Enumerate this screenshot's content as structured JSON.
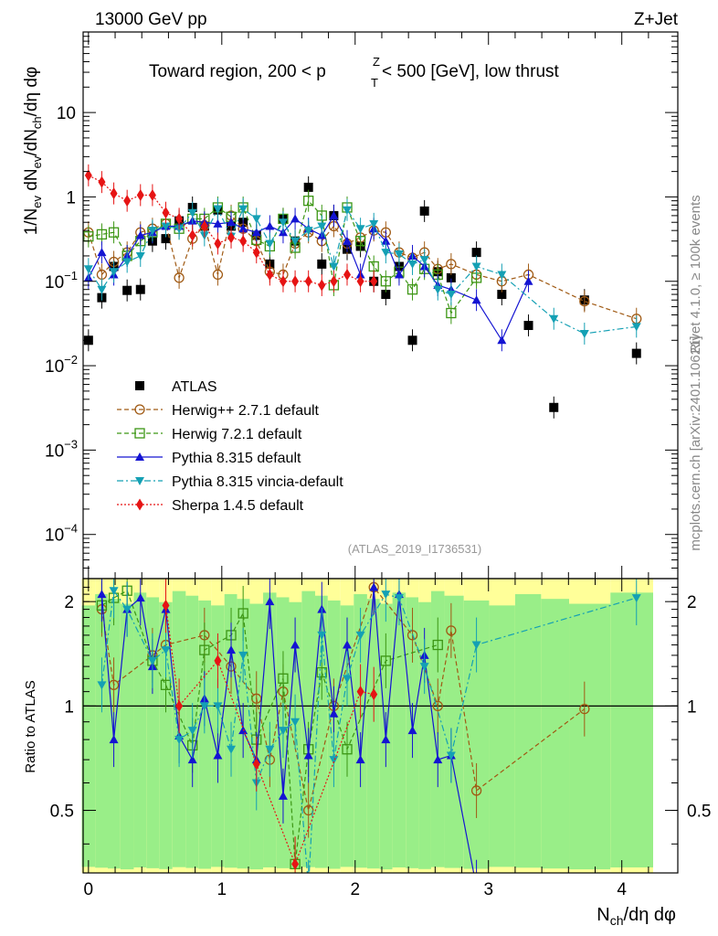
{
  "header": {
    "beam": "13000 GeV pp",
    "process": "Z+Jet",
    "title_prefix": "Toward region, 200 < p",
    "title_sup": "Z",
    "title_sub": "T",
    "title_suffix": " < 500 [GeV], low thrust",
    "rivet": "Rivet 4.1.0, ≥ 100k events",
    "mcplots": "mcplots.cern.ch [arXiv:2401.10621]",
    "analysis_id": "(ATLAS_2019_I1736531)"
  },
  "chart_data": [
    {
      "type": "scatter",
      "name": "main",
      "ylabel": "1/N_ev dN_ev/dN_ch/dη dφ",
      "yscale": "log",
      "ylim": [
        3e-05,
        90
      ],
      "xlim": [
        -0.04,
        4.42
      ],
      "y_ticks": [
        {
          "v": 10,
          "base": "10",
          "exp": ""
        },
        {
          "v": 1,
          "base": "1",
          "exp": ""
        },
        {
          "v": 0.1,
          "base": "10",
          "exp": "−1"
        },
        {
          "v": 0.01,
          "base": "10",
          "exp": "−2"
        },
        {
          "v": 0.001,
          "base": "10",
          "exp": "−3"
        },
        {
          "v": 0.0001,
          "base": "10",
          "exp": "−4"
        }
      ],
      "legend": {
        "placement": "lower-left",
        "entries": [
          {
            "label": "ATLAS",
            "color": "#000000",
            "marker": "square",
            "dash": ""
          },
          {
            "label": "Herwig++ 2.7.1 default",
            "color": "#a05a14",
            "marker": "circle-open",
            "dash": "5,3"
          },
          {
            "label": "Herwig 7.2.1 default",
            "color": "#3c9614",
            "marker": "square-open",
            "dash": "5,3"
          },
          {
            "label": "Pythia 8.315 default",
            "color": "#1414d2",
            "marker": "triangle-up",
            "dash": ""
          },
          {
            "label": "Pythia 8.315 vincia-default",
            "color": "#14a0b4",
            "marker": "triangle-down",
            "dash": "7,3,2,3"
          },
          {
            "label": "Sherpa 1.4.5 default",
            "color": "#e61414",
            "marker": "diamond",
            "dash": "2,2"
          }
        ]
      },
      "series": [
        {
          "name": "ATLAS",
          "color": "#000000",
          "x": [
            0.0,
            0.1,
            0.19,
            0.29,
            0.39,
            0.48,
            0.58,
            0.68,
            0.78,
            0.87,
            0.97,
            1.07,
            1.16,
            1.26,
            1.36,
            1.46,
            1.55,
            1.65,
            1.75,
            1.84,
            1.94,
            2.04,
            2.14,
            2.23,
            2.33,
            2.43,
            2.52,
            2.62,
            2.72,
            2.91,
            3.1,
            3.3,
            3.49,
            3.72,
            4.11
          ],
          "y": [
            0.02,
            0.064,
            0.15,
            0.078,
            0.08,
            0.3,
            0.32,
            0.52,
            0.75,
            0.45,
            0.7,
            0.45,
            0.5,
            0.35,
            0.16,
            0.55,
            0.3,
            1.3,
            0.16,
            0.6,
            0.24,
            0.26,
            0.1,
            0.07,
            0.15,
            0.02,
            0.68,
            0.13,
            0.11,
            0.22,
            0.07,
            0.03,
            0.0032,
            0.06,
            0.014
          ]
        },
        {
          "name": "Herwig++ 2.7.1 default",
          "color": "#a05a14",
          "x": [
            0.0,
            0.1,
            0.19,
            0.29,
            0.39,
            0.48,
            0.58,
            0.68,
            0.78,
            0.87,
            0.97,
            1.07,
            1.16,
            1.26,
            1.36,
            1.46,
            1.55,
            1.65,
            1.75,
            1.84,
            1.94,
            2.04,
            2.14,
            2.23,
            2.33,
            2.43,
            2.52,
            2.62,
            2.72,
            2.91,
            3.1,
            3.3,
            3.72,
            4.11
          ],
          "y": [
            0.38,
            0.12,
            0.17,
            0.22,
            0.38,
            0.42,
            0.48,
            0.11,
            0.32,
            0.46,
            0.12,
            0.6,
            0.42,
            0.3,
            0.13,
            0.12,
            0.28,
            0.38,
            0.3,
            0.45,
            0.28,
            0.33,
            0.4,
            0.38,
            0.22,
            0.19,
            0.22,
            0.14,
            0.16,
            0.12,
            0.1,
            0.12,
            0.058,
            0.036
          ]
        },
        {
          "name": "Herwig 7.2.1 default",
          "color": "#3c9614",
          "x": [
            0.0,
            0.1,
            0.19,
            0.29,
            0.39,
            0.48,
            0.58,
            0.68,
            0.78,
            0.87,
            0.97,
            1.07,
            1.16,
            1.26,
            1.36,
            1.46,
            1.55,
            1.65,
            1.75,
            1.84,
            1.94,
            2.04,
            2.14,
            2.23,
            2.33,
            2.43,
            2.52,
            2.62,
            2.72,
            2.91
          ],
          "y": [
            0.34,
            0.36,
            0.38,
            0.2,
            0.3,
            0.38,
            0.48,
            0.42,
            0.55,
            0.55,
            0.75,
            0.58,
            0.75,
            0.31,
            0.26,
            0.55,
            0.25,
            0.9,
            0.6,
            0.09,
            0.75,
            0.3,
            0.15,
            0.1,
            0.13,
            0.08,
            0.14,
            0.12,
            0.042,
            0.11
          ]
        },
        {
          "name": "Pythia 8.315 default",
          "color": "#1414d2",
          "x": [
            0.0,
            0.1,
            0.19,
            0.29,
            0.39,
            0.48,
            0.58,
            0.68,
            0.78,
            0.87,
            0.97,
            1.07,
            1.16,
            1.26,
            1.36,
            1.46,
            1.55,
            1.65,
            1.75,
            1.84,
            1.94,
            2.04,
            2.14,
            2.23,
            2.33,
            2.43,
            2.52,
            2.62,
            2.72,
            2.91,
            3.1,
            3.3
          ],
          "y": [
            0.11,
            0.22,
            0.12,
            0.2,
            0.35,
            0.38,
            0.45,
            0.45,
            0.52,
            0.5,
            0.48,
            0.5,
            0.42,
            0.38,
            0.45,
            0.38,
            0.55,
            0.42,
            0.35,
            0.6,
            0.3,
            0.12,
            0.42,
            0.3,
            0.12,
            0.2,
            0.15,
            0.09,
            0.08,
            0.06,
            0.02,
            0.1
          ]
        },
        {
          "name": "Pythia 8.315 vincia-default",
          "color": "#14a0b4",
          "x": [
            0.0,
            0.1,
            0.19,
            0.29,
            0.39,
            0.48,
            0.58,
            0.68,
            0.78,
            0.87,
            0.97,
            1.07,
            1.16,
            1.26,
            1.36,
            1.46,
            1.55,
            1.65,
            1.75,
            1.84,
            1.94,
            2.04,
            2.14,
            2.23,
            2.33,
            2.43,
            2.52,
            2.62,
            2.72,
            2.91,
            3.1,
            3.49,
            3.72,
            4.11
          ],
          "y": [
            0.14,
            0.08,
            0.13,
            0.17,
            0.2,
            0.4,
            0.45,
            0.42,
            0.65,
            0.35,
            0.72,
            0.34,
            0.72,
            0.55,
            0.28,
            0.5,
            0.3,
            0.4,
            0.45,
            0.15,
            0.7,
            0.42,
            0.48,
            0.22,
            0.21,
            0.16,
            0.18,
            0.08,
            0.07,
            0.15,
            0.12,
            0.036,
            0.024,
            0.029
          ]
        },
        {
          "name": "Sherpa 1.4.5 default",
          "color": "#e61414",
          "x": [
            0.0,
            0.1,
            0.19,
            0.29,
            0.39,
            0.48,
            0.58,
            0.68,
            0.78,
            0.87,
            0.97,
            1.07,
            1.16,
            1.26,
            1.36,
            1.46,
            1.55,
            1.65,
            1.75,
            1.84,
            1.94,
            2.04,
            2.14
          ],
          "y": [
            1.8,
            1.5,
            1.1,
            0.9,
            1.05,
            1.05,
            0.65,
            0.55,
            0.35,
            0.45,
            0.28,
            0.33,
            0.3,
            0.22,
            0.12,
            0.1,
            0.1,
            0.1,
            0.09,
            0.1,
            0.12,
            0.1,
            0.1
          ]
        }
      ]
    },
    {
      "type": "scatter",
      "name": "ratio",
      "ylabel": "Ratio to ATLAS",
      "ylim": [
        0.33,
        2.33
      ],
      "xlim": [
        -0.04,
        4.42
      ],
      "xlabel": "N_ch/dη dφ",
      "x_ticks": [
        0,
        1,
        2,
        3,
        4
      ],
      "y_ticks": [
        0.5,
        1,
        2
      ],
      "series": [
        {
          "name": "Herwig++ 2.7.1 default",
          "color": "#a05a14",
          "x": [
            0.1,
            0.19,
            0.48,
            0.58,
            0.87,
            1.07,
            1.26,
            1.36,
            1.46,
            1.65,
            1.84,
            2.14,
            2.43,
            2.62,
            2.72,
            2.91,
            3.72
          ],
          "y": [
            1.9,
            1.15,
            1.4,
            1.5,
            1.6,
            1.3,
            1.05,
            0.7,
            1.1,
            0.5,
            1.0,
            2.2,
            1.6,
            1.0,
            1.65,
            0.57,
            0.98
          ]
        },
        {
          "name": "Herwig 7.2.1 default",
          "color": "#3c9614",
          "x": [
            0.1,
            0.19,
            0.29,
            0.48,
            0.58,
            0.78,
            0.87,
            1.07,
            1.16,
            1.26,
            1.46,
            1.55,
            1.65,
            1.75,
            1.94,
            2.23,
            2.62
          ],
          "y": [
            1.95,
            2.05,
            2.15,
            1.35,
            1.15,
            0.77,
            1.45,
            1.6,
            1.85,
            0.8,
            1.2,
            0.35,
            0.75,
            1.25,
            0.75,
            1.35,
            1.5
          ]
        },
        {
          "name": "Pythia 8.315 default",
          "color": "#1414d2",
          "x": [
            0.1,
            0.19,
            0.29,
            0.39,
            0.48,
            0.58,
            0.68,
            0.78,
            0.87,
            0.97,
            1.07,
            1.16,
            1.26,
            1.36,
            1.46,
            1.55,
            1.65,
            1.75,
            1.84,
            1.94,
            2.04,
            2.14,
            2.23,
            2.33,
            2.43,
            2.52,
            2.62,
            2.72,
            2.91
          ],
          "y": [
            2.1,
            0.8,
            1.9,
            2.05,
            1.3,
            1.9,
            0.82,
            0.7,
            1.05,
            0.72,
            1.45,
            0.85,
            0.7,
            2.0,
            0.55,
            1.5,
            0.72,
            1.9,
            0.95,
            1.5,
            0.7,
            2.2,
            0.8,
            2.1,
            0.85,
            1.4,
            0.7,
            0.72,
            0.3
          ]
        },
        {
          "name": "Pythia 8.315 vincia-default",
          "color": "#14a0b4",
          "x": [
            0.1,
            0.19,
            0.29,
            0.48,
            0.58,
            0.68,
            0.78,
            0.87,
            0.97,
            1.07,
            1.16,
            1.26,
            1.36,
            1.46,
            1.55,
            1.65,
            1.75,
            1.84,
            1.94,
            2.04,
            2.23,
            2.33,
            2.52,
            2.72,
            2.91,
            4.11
          ],
          "y": [
            1.15,
            2.15,
            1.9,
            1.35,
            1.45,
            0.8,
            0.85,
            1.0,
            1.0,
            0.75,
            1.4,
            0.6,
            0.75,
            0.85,
            0.9,
            0.3,
            1.6,
            0.7,
            1.2,
            1.6,
            2.1,
            2.05,
            1.3,
            0.72,
            1.5,
            2.05
          ]
        },
        {
          "name": "Sherpa 1.4.5 default",
          "color": "#e61414",
          "x": [
            0.58,
            0.68,
            0.97,
            1.26,
            1.55,
            2.04,
            2.14
          ],
          "y": [
            1.95,
            1.0,
            1.35,
            0.68,
            0.35,
            1.1,
            1.08
          ]
        }
      ]
    }
  ]
}
